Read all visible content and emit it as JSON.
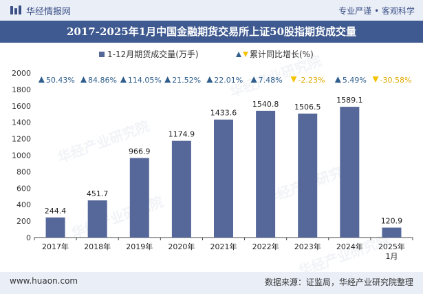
{
  "header": {
    "brand": "华经情报网",
    "tagline": "专业严谨 • 客观科学"
  },
  "chart_data": {
    "type": "bar",
    "title": "2017-2025年1月中国金融期货交易所上证50股指期货成交量",
    "categories": [
      "2017年",
      "2018年",
      "2019年",
      "2020年",
      "2021年",
      "2022年",
      "2023年",
      "2024年",
      "2025年\n1月"
    ],
    "series": [
      {
        "name": "1-12月期货成交量(万手)",
        "values": [
          244.4,
          451.7,
          966.9,
          1174.9,
          1433.6,
          1540.8,
          1506.5,
          1589.1,
          120.9
        ],
        "labels": [
          "244.4",
          "451.7",
          "966.9",
          "1174.9",
          "1433.6",
          "1540.8",
          "1506.5",
          "1589.1",
          "120.9"
        ]
      },
      {
        "name": "累计同比增长(%)",
        "values": [
          50.43,
          84.86,
          114.05,
          21.52,
          22.01,
          7.48,
          -2.23,
          5.49,
          -30.58
        ],
        "labels": [
          "50.43%",
          "84.86%",
          "114.05%",
          "21.52%",
          "22.01%",
          "7.48%",
          "-2.23%",
          "5.49%",
          "-30.58%"
        ]
      }
    ],
    "ylim": [
      0,
      2000
    ],
    "yticks": [
      "0",
      "200",
      "400",
      "600",
      "800",
      "1000",
      "1200",
      "1400",
      "1600",
      "1800",
      "2000"
    ],
    "grid": false,
    "legend": "top-center"
  },
  "footer": {
    "site": "www.huaon.com",
    "source": "数据来源：证监局，华经产业研究院整理"
  },
  "watermark": "华经产业研究院",
  "colors": {
    "bar": "#56689a",
    "up": "#2f5d8c",
    "down": "#f5c200",
    "title_bg": "#3f5a90"
  }
}
